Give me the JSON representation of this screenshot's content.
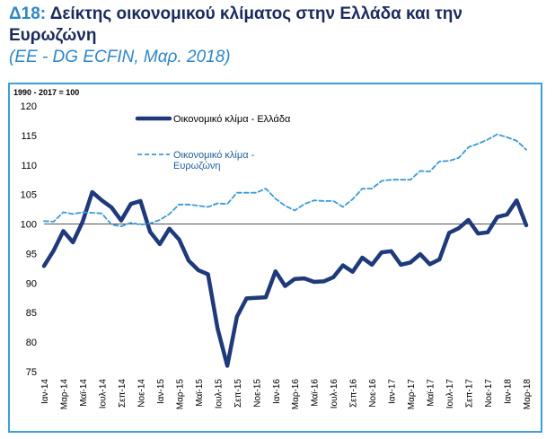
{
  "header": {
    "title_num": "Δ18:",
    "title_text": "Δείκτης οικονομικού κλίματος στην Ελλάδα και την Ευρωζώνη",
    "subtitle": "(ΕΕ - DG ECFIN, Μαρ. 2018)"
  },
  "chart_data": {
    "type": "line",
    "base_note": "1990 - 2017 = 100",
    "ylim": [
      75,
      120
    ],
    "yticks": [
      "75",
      "80",
      "85",
      "90",
      "95",
      "100",
      "105",
      "110",
      "115",
      "120"
    ],
    "reference_line": 100,
    "xtick_labels": [
      "Ιαν-14",
      "Μαρ-14",
      "Μαϊ-14",
      "Ιουλ-14",
      "Σεπ-14",
      "Νοε-14",
      "Ιαν-15",
      "Μαρ-15",
      "Μαϊ-15",
      "Ιουλ-15",
      "Σεπ-15",
      "Νοε-15",
      "Ιαν-16",
      "Μαρ-16",
      "Μαϊ-16",
      "Ιουλ-16",
      "Σεπ-16",
      "Νοε-16",
      "Ιαν-17",
      "Μαρ-17",
      "Μαϊ-17",
      "Ιουλ-17",
      "Σεπ-17",
      "Νοε-17",
      "Ιαν-18",
      "Μαρ-18"
    ],
    "legend_position": "top-left",
    "colors": {
      "greece": "#1f3a7a",
      "eurozone": "#3c9ad3",
      "reference": "#555555"
    },
    "series": [
      {
        "name": "Οικονομικό κλίμα - Ελλάδα",
        "style": "solid",
        "x": [
          "Ιαν-14",
          "Φεβ-14",
          "Μαρ-14",
          "Απρ-14",
          "Μαϊ-14",
          "Ιουν-14",
          "Ιουλ-14",
          "Αυγ-14",
          "Σεπ-14",
          "Οκτ-14",
          "Νοε-14",
          "Δεκ-14",
          "Ιαν-15",
          "Φεβ-15",
          "Μαρ-15",
          "Απρ-15",
          "Μαϊ-15",
          "Ιουν-15",
          "Ιουλ-15",
          "Αυγ-15",
          "Σεπ-15",
          "Οκτ-15",
          "Νοε-15",
          "Δεκ-15",
          "Ιαν-16",
          "Φεβ-16",
          "Μαρ-16",
          "Απρ-16",
          "Μαϊ-16",
          "Ιουν-16",
          "Ιουλ-16",
          "Αυγ-16",
          "Σεπ-16",
          "Οκτ-16",
          "Νοε-16",
          "Δεκ-16",
          "Ιαν-17",
          "Φεβ-17",
          "Μαρ-17",
          "Απρ-17",
          "Μαϊ-17",
          "Ιουν-17",
          "Ιουλ-17",
          "Αυγ-17",
          "Σεπ-17",
          "Οκτ-17",
          "Νοε-17",
          "Δεκ-17",
          "Ιαν-18",
          "Φεβ-18",
          "Μαρ-18"
        ],
        "values": [
          92.9,
          95.5,
          98.8,
          96.9,
          100.4,
          105.4,
          104.0,
          102.8,
          100.6,
          103.4,
          103.9,
          98.7,
          96.6,
          99.2,
          97.4,
          93.8,
          92.2,
          91.5,
          82.3,
          76.0,
          84.3,
          87.4,
          87.5,
          87.6,
          92.0,
          89.5,
          90.7,
          90.8,
          90.2,
          90.3,
          91.0,
          93.0,
          91.9,
          94.3,
          93.1,
          95.2,
          95.4,
          93.1,
          93.5,
          94.9,
          93.2,
          94.0,
          98.5,
          99.3,
          100.7,
          98.4,
          98.6,
          101.2,
          101.6,
          104.0,
          99.8
        ]
      },
      {
        "name": "Οικονομικό κλίμα - Ευρωζώνη",
        "style": "dashed",
        "x": [
          "Ιαν-14",
          "Φεβ-14",
          "Μαρ-14",
          "Απρ-14",
          "Μαϊ-14",
          "Ιουν-14",
          "Ιουλ-14",
          "Αυγ-14",
          "Σεπ-14",
          "Οκτ-14",
          "Νοε-14",
          "Δεκ-14",
          "Ιαν-15",
          "Φεβ-15",
          "Μαρ-15",
          "Απρ-15",
          "Μαϊ-15",
          "Ιουν-15",
          "Ιουλ-15",
          "Αυγ-15",
          "Σεπ-15",
          "Οκτ-15",
          "Νοε-15",
          "Δεκ-15",
          "Ιαν-16",
          "Φεβ-16",
          "Μαρ-16",
          "Απρ-16",
          "Μαϊ-16",
          "Ιουν-16",
          "Ιουλ-16",
          "Αυγ-16",
          "Σεπ-16",
          "Οκτ-16",
          "Νοε-16",
          "Δεκ-16",
          "Ιαν-17",
          "Φεβ-17",
          "Μαρ-17",
          "Απρ-17",
          "Μαϊ-17",
          "Ιουν-17",
          "Ιουλ-17",
          "Αυγ-17",
          "Σεπ-17",
          "Οκτ-17",
          "Νοε-17",
          "Δεκ-17",
          "Ιαν-18",
          "Φεβ-18",
          "Μαρ-18"
        ],
        "values": [
          100.5,
          100.4,
          102.0,
          101.7,
          102.0,
          101.9,
          101.8,
          99.9,
          99.6,
          100.2,
          99.9,
          100.1,
          100.7,
          101.7,
          103.3,
          103.3,
          103.1,
          102.9,
          103.5,
          103.4,
          105.3,
          105.3,
          105.3,
          106.0,
          104.3,
          103.1,
          102.3,
          103.4,
          104.0,
          103.9,
          103.9,
          102.9,
          104.2,
          106.0,
          106.0,
          107.3,
          107.5,
          107.5,
          107.5,
          109.0,
          108.9,
          110.6,
          110.7,
          111.2,
          113.0,
          113.6,
          114.3,
          115.2,
          114.7,
          114.1,
          112.6
        ]
      }
    ]
  }
}
